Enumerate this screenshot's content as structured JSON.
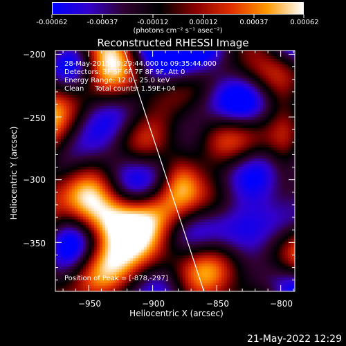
{
  "colorbar": {
    "tick_labels": [
      "-0.00062",
      "-0.00037",
      "-0.00012",
      "0.00012",
      "0.00037",
      "0.00062"
    ],
    "units_label": "(photons cm⁻² s⁻¹ asec⁻²)",
    "colormap": [
      "#0000ff",
      "#3300cc",
      "#300030",
      "#000000",
      "#8a0000",
      "#e23000",
      "#ff9a00",
      "#ffffff"
    ]
  },
  "chart_data": {
    "type": "heatmap",
    "title": "Reconstructed RHESSI Image",
    "xlabel": "Heliocentric X (arcsec)",
    "ylabel": "Heliocentric Y (arcsec)",
    "xlim": [
      -976,
      -789
    ],
    "ylim": [
      -389,
      -197
    ],
    "x_ticks": [
      -950,
      -900,
      -850,
      -800
    ],
    "y_ticks": [
      -200,
      -250,
      -300,
      -350
    ],
    "x_tick_labels": [
      "−950",
      "−900",
      "−850",
      "−800"
    ],
    "y_tick_labels": [
      "−200",
      "−250",
      "−300",
      "−350"
    ],
    "peak_position": [
      -878,
      -297
    ],
    "limb_line": [
      [
        -922,
        -197
      ],
      [
        -860,
        -389
      ]
    ],
    "annotations": [
      "28-May-2015 09:29:44.000 to 09:35:44.000",
      "Detectors: 3F 5F 6F 7F 8F 9F, Att 0",
      "Energy Range: 12.0 - 25.0 keV",
      "Clean     Total counts: 1.59E+04",
      "Position of Peak = [-878,-297]"
    ]
  },
  "timestamp": "21-May-2022 12:29"
}
